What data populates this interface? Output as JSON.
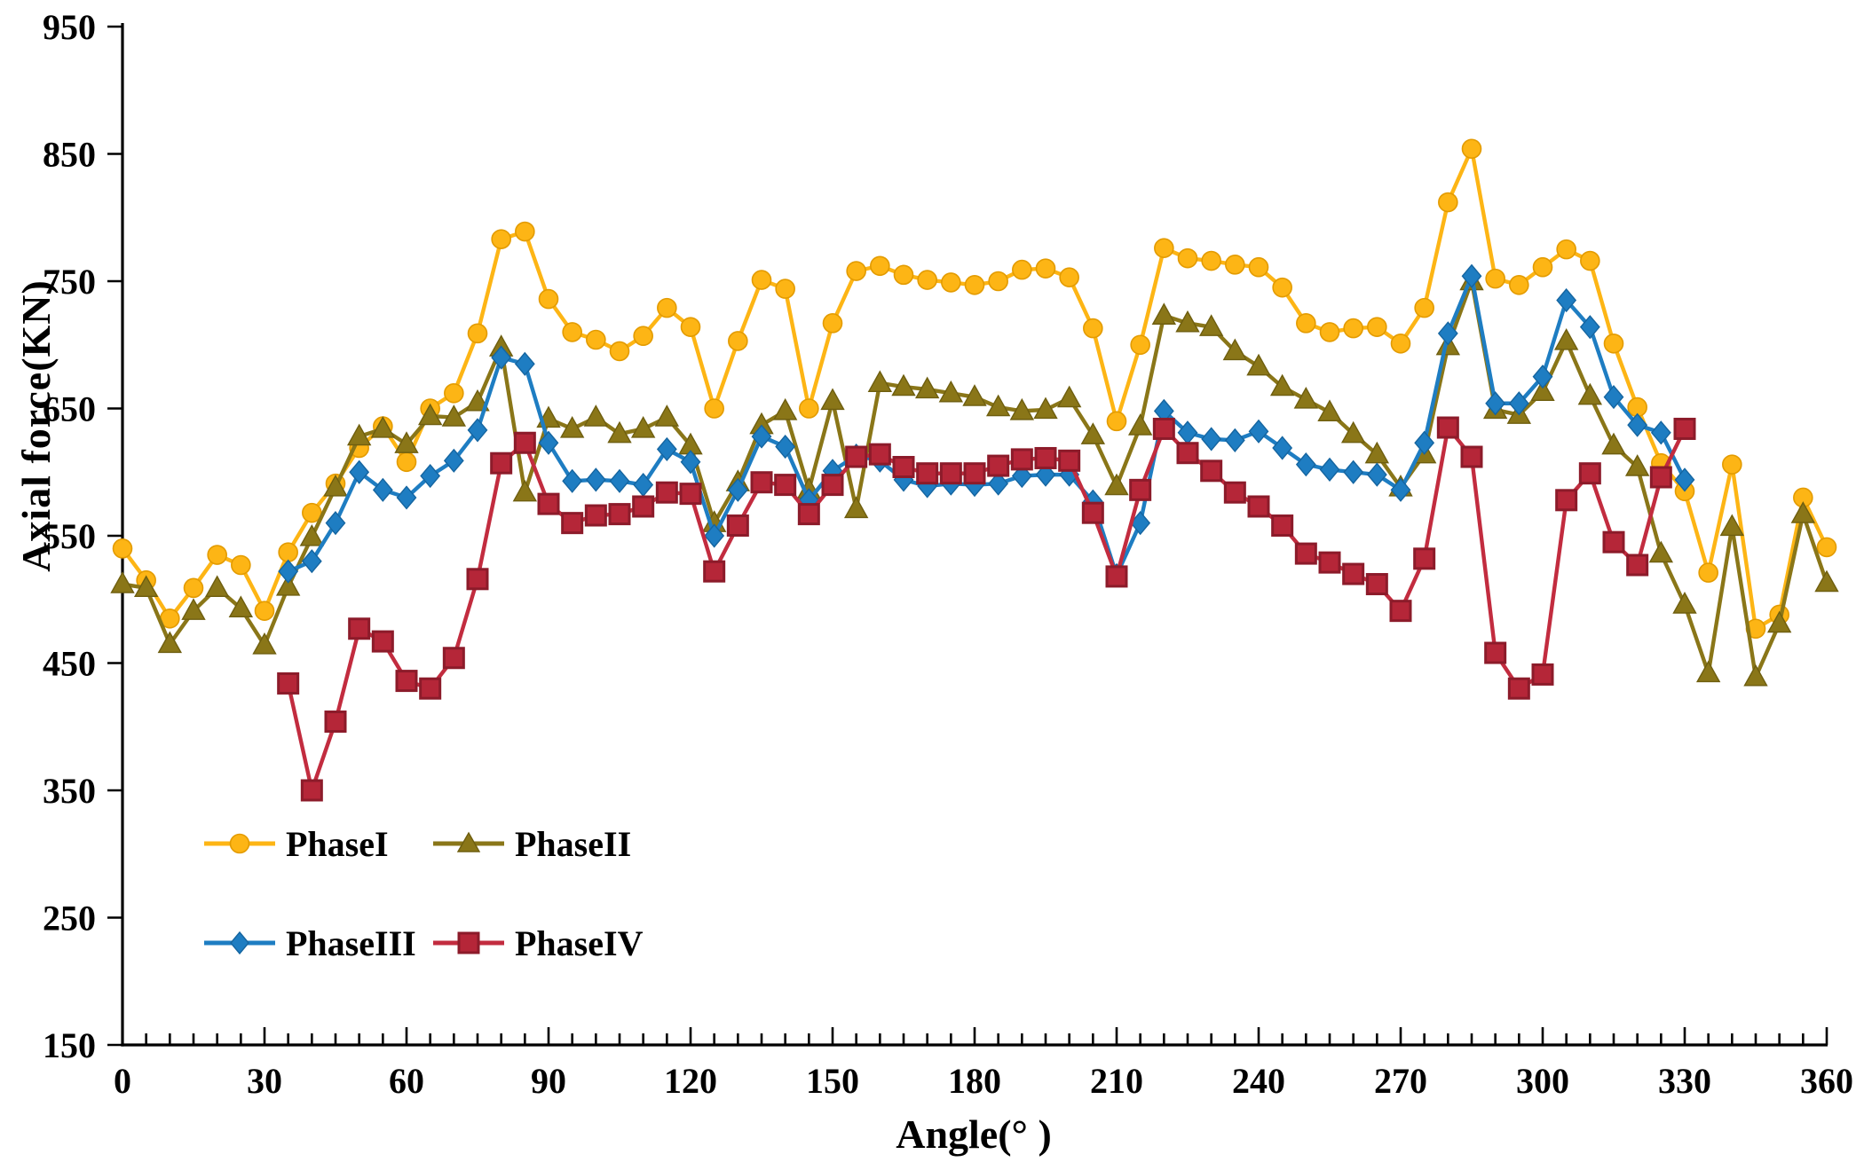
{
  "axes": {
    "y_label": "Axial force(KN)",
    "x_label": "Angle(° )",
    "y_ticks": [
      150,
      250,
      350,
      450,
      550,
      650,
      750,
      850,
      950
    ],
    "x_ticks": [
      0,
      30,
      60,
      90,
      120,
      150,
      180,
      210,
      240,
      270,
      300,
      330,
      360
    ],
    "x_minor_step": 5,
    "y_range": [
      150,
      950
    ],
    "x_range": [
      0,
      360
    ]
  },
  "legend": [
    {
      "label": "PhaseI",
      "marker": "circle",
      "color": "#FDB515"
    },
    {
      "label": "PhaseII",
      "marker": "triangle",
      "color": "#8A7618"
    },
    {
      "label": "PhaseIII",
      "marker": "diamond",
      "color": "#1E7DC2"
    },
    {
      "label": "PhaseIV",
      "marker": "square",
      "color": "#B52638"
    }
  ],
  "chart_data": {
    "type": "line",
    "title": "",
    "xlabel": "Angle(° )",
    "ylabel": "Axial force(KN)",
    "xlim": [
      0,
      360
    ],
    "ylim": [
      150,
      950
    ],
    "grid": false,
    "legend_position": "inside-bottom-left",
    "series": [
      {
        "name": "PhaseI",
        "marker": "circle",
        "line_color": "#FDB515",
        "fill_color": "#FDB515",
        "edge_color": "#E39B00",
        "x": [
          0,
          5,
          10,
          15,
          20,
          25,
          30,
          35,
          40,
          45,
          50,
          55,
          60,
          65,
          70,
          75,
          80,
          85,
          90,
          95,
          100,
          105,
          110,
          115,
          120,
          125,
          130,
          135,
          140,
          145,
          150,
          155,
          160,
          165,
          170,
          175,
          180,
          185,
          190,
          195,
          200,
          205,
          210,
          215,
          220,
          225,
          230,
          235,
          240,
          245,
          250,
          255,
          260,
          265,
          270,
          275,
          280,
          285,
          290,
          295,
          300,
          305,
          310,
          315,
          320,
          325,
          330,
          335,
          340,
          345,
          350,
          355,
          360
        ],
        "values": [
          540,
          515,
          485,
          509,
          535,
          527,
          491,
          537,
          568,
          591,
          619,
          636,
          608,
          650,
          662,
          709,
          783,
          789,
          736,
          710,
          704,
          695,
          707,
          729,
          714,
          650,
          703,
          751,
          744,
          650,
          717,
          758,
          762,
          755,
          751,
          749,
          747,
          750,
          759,
          760,
          753,
          713,
          640,
          700,
          776,
          768,
          766,
          763,
          761,
          745,
          717,
          710,
          713,
          714,
          701,
          729,
          812,
          854,
          752,
          747,
          761,
          775,
          766,
          701,
          651,
          607,
          585,
          521,
          606,
          477,
          488,
          580,
          541
        ]
      },
      {
        "name": "PhaseII",
        "marker": "triangle",
        "line_color": "#8A7618",
        "fill_color": "#8A7618",
        "edge_color": "#6E5E0F",
        "x": [
          0,
          5,
          10,
          15,
          20,
          25,
          30,
          35,
          40,
          45,
          50,
          55,
          60,
          65,
          70,
          75,
          80,
          85,
          90,
          95,
          100,
          105,
          110,
          115,
          120,
          125,
          130,
          135,
          140,
          145,
          150,
          155,
          160,
          165,
          170,
          175,
          180,
          185,
          190,
          195,
          200,
          205,
          210,
          215,
          220,
          225,
          230,
          235,
          240,
          245,
          250,
          255,
          260,
          265,
          270,
          275,
          280,
          285,
          290,
          295,
          300,
          305,
          310,
          315,
          320,
          325,
          330,
          335,
          340,
          345,
          350,
          355,
          360
        ],
        "values": [
          512,
          509,
          465,
          491,
          509,
          493,
          464,
          510,
          549,
          588,
          628,
          634,
          622,
          644,
          643,
          655,
          698,
          584,
          642,
          634,
          643,
          630,
          634,
          643,
          621,
          560,
          592,
          637,
          648,
          586,
          656,
          571,
          670,
          667,
          665,
          662,
          659,
          651,
          648,
          649,
          658,
          629,
          589,
          636,
          723,
          717,
          714,
          695,
          683,
          667,
          657,
          647,
          630,
          614,
          588,
          614,
          699,
          750,
          649,
          645,
          663,
          703,
          660,
          621,
          604,
          536,
          496,
          442,
          557,
          439,
          481,
          567,
          513
        ]
      },
      {
        "name": "PhaseIII",
        "marker": "diamond",
        "line_color": "#1E7DC2",
        "fill_color": "#1E7DC2",
        "edge_color": "#1565A0",
        "x": [
          35,
          40,
          45,
          50,
          55,
          60,
          65,
          70,
          75,
          80,
          85,
          90,
          95,
          100,
          105,
          110,
          115,
          120,
          125,
          130,
          135,
          140,
          145,
          150,
          155,
          160,
          165,
          170,
          175,
          180,
          185,
          190,
          195,
          200,
          205,
          210,
          215,
          220,
          225,
          230,
          235,
          240,
          245,
          250,
          255,
          260,
          265,
          270,
          275,
          280,
          285,
          290,
          295,
          300,
          305,
          310,
          315,
          320,
          325,
          330
        ],
        "values": [
          522,
          530,
          560,
          600,
          586,
          580,
          597,
          609,
          633,
          690,
          685,
          623,
          593,
          594,
          593,
          590,
          618,
          608,
          550,
          586,
          628,
          620,
          578,
          601,
          613,
          609,
          594,
          589,
          591,
          590,
          591,
          597,
          598,
          598,
          577,
          519,
          560,
          648,
          631,
          626,
          625,
          632,
          619,
          606,
          602,
          600,
          598,
          586,
          623,
          709,
          754,
          654,
          654,
          675,
          735,
          714,
          659,
          637,
          631,
          594
        ]
      },
      {
        "name": "PhaseIV",
        "marker": "square",
        "line_color": "#C22C3F",
        "fill_color": "#B52638",
        "edge_color": "#8C1B2A",
        "x": [
          35,
          40,
          45,
          50,
          55,
          60,
          65,
          70,
          75,
          80,
          85,
          90,
          95,
          100,
          105,
          110,
          115,
          120,
          125,
          130,
          135,
          140,
          145,
          150,
          155,
          160,
          165,
          170,
          175,
          180,
          185,
          190,
          195,
          200,
          205,
          210,
          215,
          220,
          225,
          230,
          235,
          240,
          245,
          250,
          255,
          260,
          265,
          270,
          275,
          280,
          285,
          290,
          295,
          300,
          305,
          310,
          315,
          320,
          325,
          330
        ],
        "values": [
          434,
          350,
          404,
          477,
          467,
          436,
          430,
          454,
          516,
          607,
          623,
          575,
          560,
          566,
          567,
          573,
          584,
          583,
          522,
          558,
          592,
          590,
          567,
          590,
          612,
          614,
          604,
          599,
          599,
          599,
          605,
          610,
          611,
          609,
          568,
          518,
          586,
          634,
          615,
          601,
          584,
          573,
          558,
          536,
          529,
          520,
          512,
          491,
          532,
          635,
          612,
          458,
          430,
          441,
          578,
          599,
          545,
          527,
          596,
          634
        ]
      }
    ]
  }
}
